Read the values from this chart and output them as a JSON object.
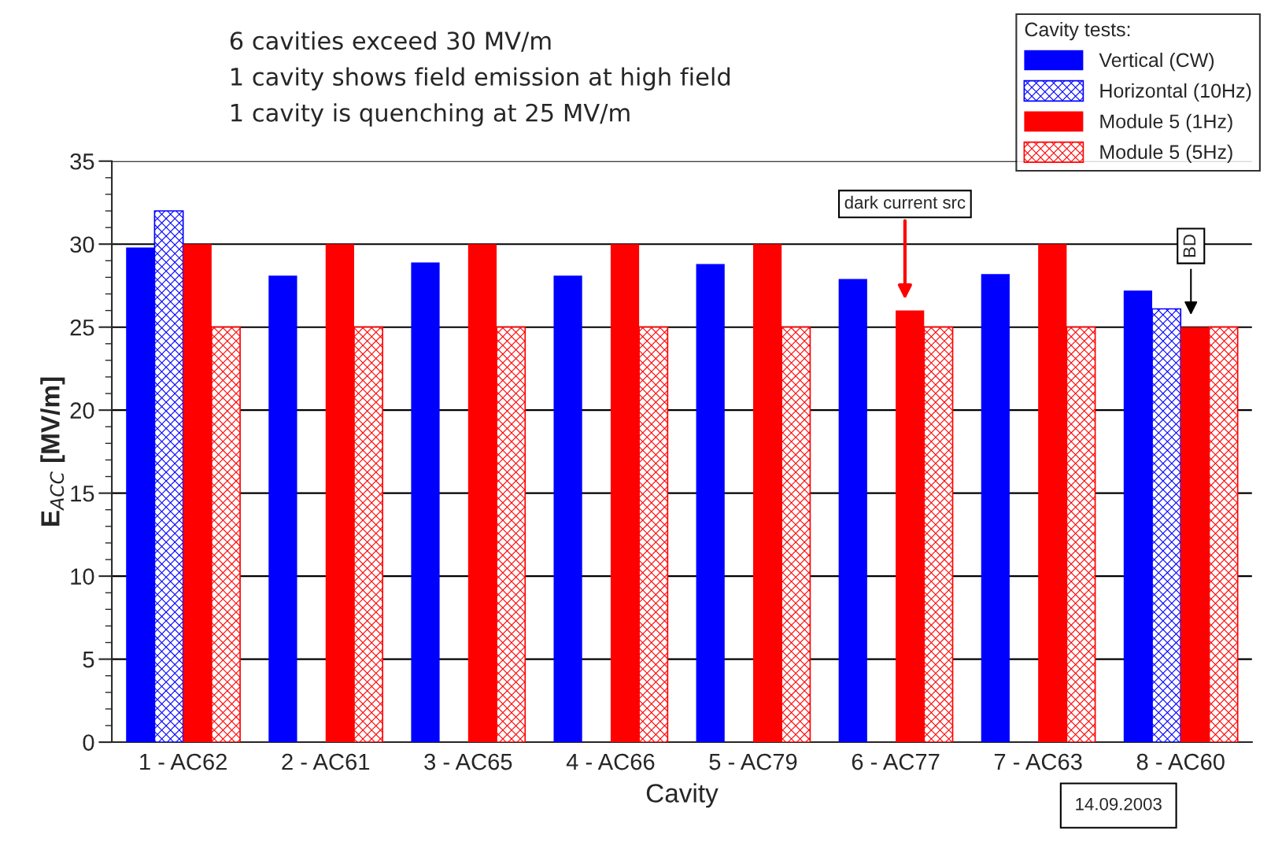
{
  "chart_data": {
    "type": "bar",
    "categories": [
      "1 - AC62",
      "2 - AC61",
      "3 - AC65",
      "4 - AC66",
      "5 - AC79",
      "6 - AC77",
      "7 - AC63",
      "8 - AC60"
    ],
    "series": [
      {
        "name": "Vertical (CW)",
        "color": "#0000ff",
        "values": [
          29.8,
          28.1,
          28.9,
          28.1,
          28.8,
          27.9,
          28.2,
          27.2
        ]
      },
      {
        "name": "Horizontal (10Hz)",
        "color": "#0000ff",
        "values": [
          32,
          null,
          null,
          null,
          null,
          null,
          null,
          26.1
        ]
      },
      {
        "name": "Module 5 (1Hz)",
        "color": "#ff0000",
        "values": [
          30,
          30,
          30,
          30,
          30,
          26,
          30,
          25
        ]
      },
      {
        "name": "Module 5 (5Hz)",
        "color": "#ff0000",
        "values": [
          25,
          25,
          25,
          25,
          25,
          25,
          25,
          25
        ]
      }
    ],
    "xlabel": "Cavity",
    "ylabel": "E$_{ACC}$ [MV/m]",
    "legend_title": "Cavity tests:",
    "ylim": [
      0,
      35
    ],
    "yticks": [
      0,
      5,
      10,
      15,
      20,
      25,
      30,
      35
    ],
    "grid": "y",
    "legend": "top right",
    "annotations": [
      "6 cavities exceed 30 MV/m",
      "1 cavity shows field emission at high field",
      "1 cavity is quenching at 25 MV/m",
      "dark current src",
      "BD",
      "14.09.2003"
    ]
  }
}
